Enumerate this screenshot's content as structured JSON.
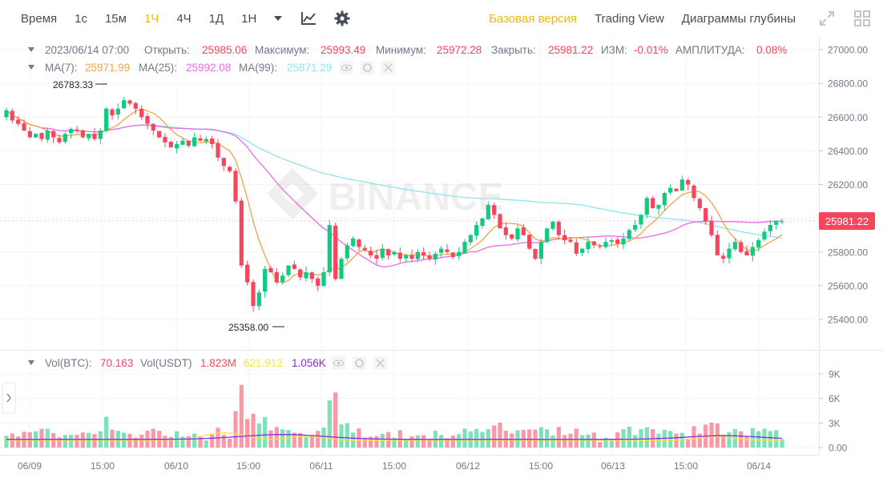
{
  "toolbar": {
    "time_label": "Время",
    "timeframes": [
      "1с",
      "15м",
      "1Ч",
      "4Ч",
      "1Д",
      "1Н"
    ],
    "active_timeframe": "1Ч",
    "tabs": [
      "Базовая версия",
      "Trading View",
      "Диаграммы глубины"
    ],
    "active_tab": "Базовая версия"
  },
  "ohlc": {
    "datetime": "2023/06/14 07:00",
    "open_label": "Открыть:",
    "open": "25985.06",
    "high_label": "Максимум:",
    "high": "25993.49",
    "low_label": "Минимум:",
    "low": "25972.28",
    "close_label": "Закрыть:",
    "close": "25981.22",
    "change_label": "ИЗМ:",
    "change": "-0.01%",
    "amplitude_label": "АМПЛИТУДА:",
    "amplitude": "0.08%"
  },
  "ma": {
    "ma7_label": "MA(7):",
    "ma7": "25971.99",
    "ma25_label": "MA(25):",
    "ma25": "25992.08",
    "ma99_label": "MA(99):",
    "ma99": "25871.29"
  },
  "vol": {
    "btc_label": "Vol(BTC):",
    "btc": "70.163",
    "usdt_label": "Vol(USDT)",
    "usdt": "1.823M",
    "ma_a": "621.912",
    "ma_b": "1.056K"
  },
  "watermark": "BINANCE",
  "price_axis": [
    "27000.00",
    "26800.00",
    "26600.00",
    "26400.00",
    "26200.00",
    "26000.00",
    "25800.00",
    "25600.00",
    "25400.00"
  ],
  "current_price": "25981.22",
  "high_marker": "26783.33",
  "low_marker": "25358.00",
  "volume_axis": [
    "9K",
    "6K",
    "3K",
    "0.00"
  ],
  "time_axis": [
    "06/09",
    "15:00",
    "06/10",
    "15:00",
    "06/11",
    "15:00",
    "06/12",
    "15:00",
    "06/13",
    "15:00",
    "06/14"
  ],
  "colors": {
    "up": "#0ecb81",
    "down": "#f6465d",
    "ma7": "#f0a44b",
    "ma25": "#e96ce6",
    "ma99": "#8ee5ee",
    "vol_ma_a": "#f7e53b",
    "vol_ma_b": "#8a2be2",
    "accent": "#f0b90b"
  },
  "chart_data": {
    "type": "candlestick",
    "candles_close": [
      26640,
      26580,
      26560,
      26520,
      26480,
      26500,
      26470,
      26520,
      26480,
      26450,
      26500,
      26530,
      26520,
      26480,
      26500,
      26470,
      26520,
      26650,
      26610,
      26650,
      26700,
      26680,
      26650,
      26600,
      26560,
      26520,
      26480,
      26450,
      26420,
      26440,
      26460,
      26430,
      26480,
      26460,
      26470,
      26440,
      26360,
      26310,
      26280,
      26100,
      25720,
      25620,
      25480,
      25560,
      25700,
      25680,
      25620,
      25660,
      25720,
      25700,
      25650,
      25680,
      25640,
      25600,
      25680,
      25960,
      25640,
      25760,
      25840,
      25880,
      25830,
      25810,
      25780,
      25760,
      25820,
      25780,
      25800,
      25760,
      25780,
      25760,
      25800,
      25780,
      25760,
      25790,
      25820,
      25800,
      25770,
      25800,
      25860,
      25900,
      25960,
      26000,
      26080,
      26020,
      25940,
      25900,
      25880,
      25940,
      25900,
      25820,
      25760,
      25860,
      25940,
      25980,
      25900,
      25870,
      25860,
      25790,
      25820,
      25860,
      25840,
      25830,
      25860,
      25870,
      25850,
      25880,
      25930,
      25960,
      26020,
      26120,
      26060,
      26080,
      26150,
      26180,
      26160,
      26230,
      26200,
      26120,
      26060,
      25980,
      25900,
      25780,
      25760,
      25820,
      25860,
      25800,
      25780,
      25830,
      25870,
      25920,
      25960,
      25985,
      25981
    ],
    "price_range": [
      25300,
      27050
    ],
    "ma_lines": [
      "MA(7)",
      "MA(25)",
      "MA(99)"
    ]
  }
}
